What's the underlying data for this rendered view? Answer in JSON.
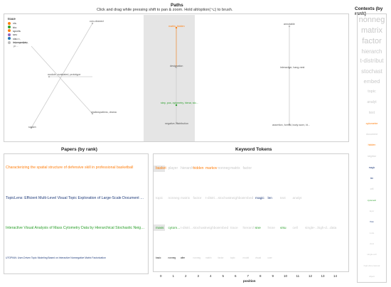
{
  "paths": {
    "title": "Paths",
    "instructions": "Click and drag while pressing shift to pan & zoom. Hold alt/option(⌥) to brush.",
    "legend": {
      "title": "trace",
      "items": [
        {
          "label": "vis",
          "color": "#ff7f0e"
        },
        {
          "label": "bio",
          "color": "#2ca02c"
        },
        {
          "label": "sports",
          "color": "#ff7f0e"
        },
        {
          "label": "sec",
          "color": "#9467bd"
        },
        {
          "label": "vis",
          "color": "#1f77b4"
        },
        {
          "label": "intersection",
          "color": "#bbbbbb"
        }
      ],
      "overlap_label": "...ion, topography, pr..."
    },
    "node_labels": [
      {
        "id": "a",
        "text": "con-cleaned"
      },
      {
        "id": "b",
        "text": "module, evaluated, prototype"
      },
      {
        "id": "c",
        "text": "shallowpatiens, drama"
      },
      {
        "id": "d",
        "text": "snatch"
      },
      {
        "id": "e",
        "text": "matrix, hidden",
        "color": "#ff7f0e"
      },
      {
        "id": "f",
        "text": "designation"
      },
      {
        "id": "g",
        "text": "step, pos, cytometry, hierar, sto...",
        "color": "#2ca02c"
      },
      {
        "id": "h",
        "text": "negative, distribution"
      },
      {
        "id": "i",
        "text": "annotable"
      },
      {
        "id": "j",
        "text": "interactive, hang-nest"
      },
      {
        "id": "k",
        "text": "assertion, formal, body-worn, bl..."
      }
    ]
  },
  "contexts": {
    "title": "Contexts (by rank)",
    "items": [
      {
        "label": "nonneg",
        "color": "#c8c8c8"
      },
      {
        "label": "matrix",
        "color": "#c8c8c8"
      },
      {
        "label": "factor",
        "color": "#c8c8c8"
      },
      {
        "label": "hierarch",
        "color": "#c8c8c8"
      },
      {
        "label": "t-distribut",
        "color": "#c8c8c8"
      },
      {
        "label": "stochast",
        "color": "#c8c8c8"
      },
      {
        "label": "embed",
        "color": "#c8c8c8"
      },
      {
        "label": "topic",
        "color": "#c8c8c8"
      },
      {
        "label": "analyt",
        "color": "#c8c8c8"
      },
      {
        "label": "text",
        "color": "#c8c8c8"
      },
      {
        "label": "cytometre",
        "color": "#ff7f0e"
      },
      {
        "label": "document",
        "color": "#c8c8c8"
      },
      {
        "label": "hidden",
        "color": "#ff7f0e"
      },
      {
        "label": "neighbor",
        "color": "#c8c8c8"
      },
      {
        "label": "magic",
        "color": "#1f3b7a"
      },
      {
        "label": "len",
        "color": "#1f3b7a"
      },
      {
        "label": "cell",
        "color": "#c8c8c8"
      },
      {
        "label": "cytometri",
        "color": "#2ca02c"
      },
      {
        "label": "layer",
        "color": "#c8c8c8"
      },
      {
        "label": "flow",
        "color": "#1f3b7a"
      },
      {
        "label": "node",
        "color": "#c8c8c8"
      },
      {
        "label": "view",
        "color": "#c8c8c8"
      },
      {
        "label": "single-cell",
        "color": "#c8c8c8"
      },
      {
        "label": "high-dimensional",
        "color": "#c8c8c8"
      },
      {
        "label": "object",
        "color": "#c8c8c8"
      }
    ]
  },
  "papers": {
    "title": "Papers (by rank)",
    "items": [
      {
        "title": "Characterizing the spatial structure of defensive skill in professional basketball",
        "color": "#ff7f0e"
      },
      {
        "title": "TopicLens: Efficient Multi-Level Visual Topic Exploration of Large-Scale Document Collecti...",
        "color": "#1f3b7a"
      },
      {
        "title": "Interactive Visual Analysis of Mass Cytometry Data by Hierarchical Stochastic Neighbor E...",
        "color": "#2ca02c"
      },
      {
        "title": "UTOPIAN: User-Driven Topic Modeling Based on Interactive Nonnegative Matrix Factorization",
        "color": "#1f3b7a"
      }
    ]
  },
  "keywords": {
    "title": "Keyword Tokens",
    "rows": [
      {
        "tokens": [
          {
            "text": "basket",
            "color": "#ff7f0e"
          },
          {
            "text": "player",
            "color": "#c8c8c8"
          },
          {
            "text": "hierarch",
            "color": "#c8c8c8"
          },
          {
            "text": "hidden",
            "color": "#ff7f0e"
          },
          {
            "text": "markov",
            "color": "#ff7f0e"
          },
          {
            "text": "nonneg",
            "color": "#c8c8c8"
          },
          {
            "text": "matrix",
            "color": "#c8c8c8"
          },
          {
            "text": "factor",
            "color": "#c8c8c8"
          }
        ]
      },
      {
        "tokens": [
          {
            "text": "topic",
            "color": "#c8c8c8"
          },
          {
            "text": "nonneg",
            "color": "#c8c8c8"
          },
          {
            "text": "matrix",
            "color": "#c8c8c8"
          },
          {
            "text": "factor",
            "color": "#c8c8c8"
          },
          {
            "text": "t-distri...",
            "color": "#c8c8c8"
          },
          {
            "text": "stochast",
            "color": "#c8c8c8"
          },
          {
            "text": "neighbor",
            "color": "#c8c8c8"
          },
          {
            "text": "embed",
            "color": "#c8c8c8"
          },
          {
            "text": "magic",
            "color": "#1f3b7a"
          },
          {
            "text": "len",
            "color": "#1f3b7a"
          },
          {
            "text": "text",
            "color": "#c8c8c8"
          },
          {
            "text": "analyt",
            "color": "#c8c8c8"
          }
        ]
      },
      {
        "tokens": [
          {
            "text": "mass",
            "color": "#2ca02c"
          },
          {
            "text": "cytom...",
            "color": "#2ca02c"
          },
          {
            "text": "t-distri...",
            "color": "#c8c8c8"
          },
          {
            "text": "stochast",
            "color": "#c8c8c8"
          },
          {
            "text": "neighbor",
            "color": "#c8c8c8"
          },
          {
            "text": "embed",
            "color": "#c8c8c8"
          },
          {
            "text": "trace",
            "color": "#c8c8c8"
          },
          {
            "text": "hierarch",
            "color": "#c8c8c8"
          },
          {
            "text": "sne",
            "color": "#2ca02c"
          },
          {
            "text": "hsne",
            "color": "#c8c8c8"
          },
          {
            "text": "visu",
            "color": "#2ca02c"
          },
          {
            "text": "cell",
            "color": "#c8c8c8"
          },
          {
            "text": "single-...",
            "color": "#c8c8c8"
          },
          {
            "text": "high-d...",
            "color": "#c8c8c8"
          },
          {
            "text": "data",
            "color": "#c8c8c8"
          }
        ]
      },
      {
        "tokens": [
          {
            "text": "basic",
            "color": "#222222"
          },
          {
            "text": "nonneg",
            "color": "#222222"
          },
          {
            "text": "alter",
            "color": "#222222"
          },
          {
            "text": "nonneg",
            "color": "#c8c8c8"
          },
          {
            "text": "matrix",
            "color": "#c8c8c8"
          },
          {
            "text": "factor",
            "color": "#c8c8c8"
          },
          {
            "text": "topic",
            "color": "#c8c8c8"
          },
          {
            "text": "model",
            "color": "#c8c8c8"
          },
          {
            "text": "visual",
            "color": "#c8c8c8"
          },
          {
            "text": "user",
            "color": "#c8c8c8"
          }
        ]
      }
    ],
    "axis": {
      "label": "position",
      "ticks": [
        "0",
        "1",
        "2",
        "3",
        "4",
        "5",
        "6",
        "7",
        "8",
        "9",
        "10",
        "11",
        "12",
        "13",
        "14"
      ]
    }
  }
}
